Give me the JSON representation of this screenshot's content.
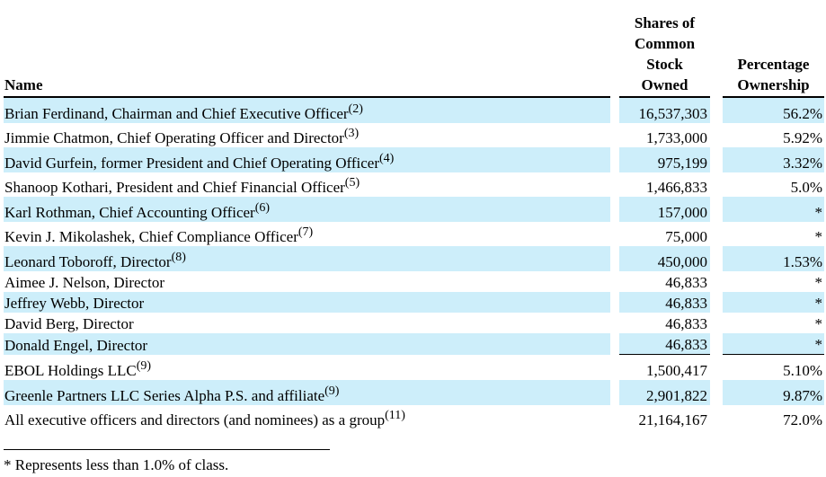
{
  "headers": {
    "name": "Name",
    "shares_lines": [
      "Shares of",
      "Common",
      "Stock",
      "Owned"
    ],
    "pct_lines": [
      "Percentage",
      "Ownership"
    ]
  },
  "rows": [
    {
      "name": "Brian Ferdinand, Chairman and Chief Executive Officer",
      "note": "(2)",
      "shares": "16,537,303",
      "pct": "56.2%"
    },
    {
      "name": "Jimmie Chatmon, Chief Operating Officer and Director",
      "note": "(3)",
      "shares": "1,733,000",
      "pct": "5.92%"
    },
    {
      "name": "David Gurfein, former President and Chief Operating Officer",
      "note": "(4)",
      "shares": "975,199",
      "pct": "3.32%"
    },
    {
      "name": "Shanoop Kothari, President and Chief Financial Officer",
      "note": "(5)",
      "shares": "1,466,833",
      "pct": "5.0%"
    },
    {
      "name": "Karl Rothman, Chief Accounting Officer",
      "note": "(6)",
      "shares": "157,000",
      "pct": "*"
    },
    {
      "name": "Kevin J. Mikolashek, Chief Compliance Officer",
      "note": "(7)",
      "shares": "75,000",
      "pct": "*"
    },
    {
      "name": "Leonard Toboroff, Director",
      "note": "(8)",
      "shares": "450,000",
      "pct": "1.53%"
    },
    {
      "name": "Aimee J. Nelson, Director",
      "note": "",
      "shares": "46,833",
      "pct": "*"
    },
    {
      "name": "Jeffrey Webb, Director",
      "note": "",
      "shares": "46,833",
      "pct": "*"
    },
    {
      "name": "David Berg, Director",
      "note": "",
      "shares": "46,833",
      "pct": "*"
    },
    {
      "name": "Donald Engel, Director",
      "note": "",
      "shares": "46,833",
      "pct": "*"
    },
    {
      "name": "EBOL Holdings LLC",
      "note": "(9)",
      "shares": "1,500,417",
      "pct": "5.10%"
    },
    {
      "name": "Greenle Partners LLC Series Alpha P.S. and affiliate",
      "note": "(9)",
      "shares": "2,901,822",
      "pct": "9.87%"
    },
    {
      "name": "All executive officers and directors (and nominees) as a group",
      "note": "(11)",
      "shares": "21,164,167",
      "pct": "72.0%"
    }
  ],
  "footnote": "* Represents less than 1.0% of class."
}
